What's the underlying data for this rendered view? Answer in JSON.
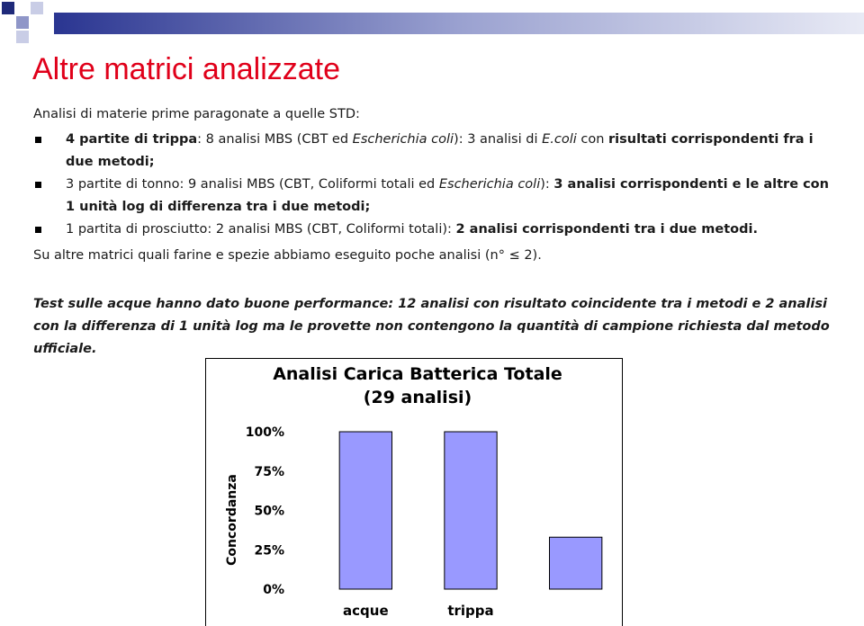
{
  "header": {
    "title": "Altre matrici analizzate"
  },
  "intro": "Analisi di materie prime paragonate a quelle STD:",
  "bullets": [
    [
      {
        "text": "4 partite di trippa",
        "style": "bold"
      },
      {
        "text": ": 8 analisi MBS (CBT ed ",
        "style": "normal"
      },
      {
        "text": "Escherichia coli",
        "style": "italic"
      },
      {
        "text": "): 3 analisi di ",
        "style": "normal"
      },
      {
        "text": "E.coli",
        "style": "italic"
      },
      {
        "text": " con ",
        "style": "normal"
      },
      {
        "text": "risultati corrispondenti fra i due metodi;",
        "style": "bold"
      }
    ],
    [
      {
        "text": "3 partite di tonno: 9 analisi MBS (CBT, Coliformi totali ed ",
        "style": "normal"
      },
      {
        "text": "Escherichia coli",
        "style": "italic"
      },
      {
        "text": "): ",
        "style": "normal"
      },
      {
        "text": "3 analisi corrispondenti e le altre con 1 unità log di differenza tra i due metodi;",
        "style": "bold"
      }
    ],
    [
      {
        "text": "1 partita di prosciutto: 2 analisi MBS (CBT, Coliformi totali): ",
        "style": "normal"
      },
      {
        "text": "2 analisi corrispondenti tra i due metodi.",
        "style": "bold"
      }
    ]
  ],
  "note": "Su altre matrici quali farine e spezie abbiamo eseguito poche analisi (n° ≤ 2).",
  "test": "Test sulle acque hanno dato buone performance: 12 analisi con risultato coincidente tra i metodi e 2 analisi con la differenza di 1 unità log ma le provette non contengono la quantità di campione richiesta dal metodo ufficiale.",
  "chart_data": {
    "type": "bar",
    "title": "Analisi Carica Batterica Totale",
    "subtitle": "(29 analisi)",
    "y_label": "Concordanza",
    "categories": [
      "acque",
      "trippa",
      null
    ],
    "values": [
      100,
      100,
      33
    ],
    "color": "#9999ff",
    "ylim": [
      0,
      100
    ],
    "yticks": [
      {
        "value": 0,
        "label": "0%"
      },
      {
        "value": 25,
        "label": "25%"
      },
      {
        "value": 50,
        "label": "50%"
      },
      {
        "value": 75,
        "label": "75%"
      },
      {
        "value": 100,
        "label": "100%"
      }
    ]
  }
}
